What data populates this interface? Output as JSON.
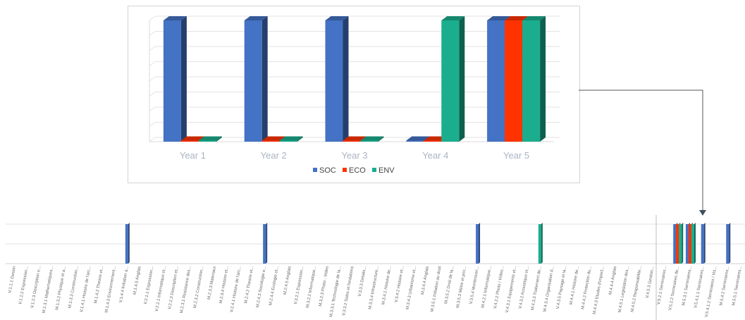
{
  "chart_data": [
    {
      "type": "bar",
      "categories": [
        "Year 1",
        "Year 2",
        "Year 3",
        "Year 4",
        "Year 5"
      ],
      "series": [
        {
          "name": "SOC",
          "values": [
            1,
            1,
            1,
            0,
            1
          ]
        },
        {
          "name": "ECO",
          "values": [
            0,
            0,
            0,
            0,
            1
          ]
        },
        {
          "name": "ENV",
          "values": [
            0,
            0,
            0,
            1,
            1
          ]
        }
      ],
      "ylim": [
        0,
        1
      ],
      "grid": true,
      "legend_placement": "bottom",
      "colors": {
        "SOC": "#4472c4",
        "ECO": "#ff3300",
        "ENV": "#1aae8e"
      }
    },
    {
      "type": "bar",
      "categories": [
        "V.1.1.1 Dessin",
        "V.1.2.2 Expression...",
        "V.1.2.3 Description e...",
        "M.1.3.1 Mathematiques...",
        "M.1.3.2 Physique et a...",
        "M.1.3.3 Construction...",
        "V.1.4.1 Histoire de l'arc...",
        "M.1.4.2 Theorie et...",
        "M.1.4.3 Environnement...",
        "V.1.4.4 Initiation a...",
        "M.1.4.5 Anglais",
        "V.2.1.1 Expression...",
        "V.2.2.1 Informatique et...",
        "V.2.2.3 Description et...",
        "M.2.3.1 Resistance des...",
        "M.2.3.2 Construction...",
        "M.2.3.3 Materiaux",
        "M.2.3.4 Histoire et...",
        "V.2.4.1 Histoire de l'arc...",
        "M.2.4.2 Theorie et...",
        "M.2.4.3 Sociologie e...",
        "M.2.4.4 Ecologie et...",
        "M.2.4.5 Anglais",
        "V.3.2.1 Expression...",
        "M.3.2.2 Informatique...",
        "M.3.2.3 Photo - Video",
        "M.3.3.1 Technologie de la...",
        "V.3.3.2 Soles et fondations",
        "V.3.3.3 Details...",
        "M.3.3.4 Infrastructure...",
        "M.3.4.1 Histoire de...",
        "V.3.4.2 Histoire et...",
        "M.3.4.3 Urbanisme et...",
        "M.3.4.4 Anglais",
        "M.3.5.1 Initiation au droit",
        "M.3.5.2 Droit de la...",
        "M.3.5.3 Metre et prix...",
        "V.3.5.4 Montessori...",
        "M.4.2.1 Informatique...",
        "V.4.2.2 Photo / Video...",
        "V.4.3.1 Equipements et...",
        "V.4.3.2 Acoustique et...",
        "M.4.3.3 Traitement de...",
        "M.4.3.4 Organisation d...",
        "V.4.3.5 Paysage et la...",
        "M.4.4.1 Histoire de...",
        "M.4.4.2 Protection du...",
        "M.4.4.3 Etudes d'impact...",
        "M.4.4.4 Anglais",
        "M.4.5.1 Legislation des...",
        "M.4.5.2 Responsabilite...",
        "V.4.5.3 Gestion...",
        "V.5.2.1 Seminaires...",
        "V.5.2.2 Seminaires de...",
        "M.5.3.1 Seminaires...",
        "V.5.4.1.1 Seminaires...",
        "V.5.4.1.2 Seminaires / Vis...",
        "M.5.4.2 Seminaires...",
        "M.5.5.1 Seminaires..."
      ],
      "series": [
        {
          "name": "SOC",
          "values": [
            0,
            0,
            0,
            0,
            0,
            0,
            0,
            0,
            0,
            1,
            0,
            0,
            0,
            0,
            0,
            0,
            0,
            0,
            0,
            0,
            1,
            0,
            0,
            0,
            0,
            0,
            0,
            0,
            0,
            0,
            0,
            0,
            0,
            0,
            0,
            0,
            0,
            1,
            0,
            0,
            0,
            0,
            0,
            0,
            0,
            0,
            0,
            0,
            0,
            0,
            0,
            0,
            0,
            1,
            1,
            1,
            0,
            1,
            0
          ]
        },
        {
          "name": "ECO",
          "values": [
            0,
            0,
            0,
            0,
            0,
            0,
            0,
            0,
            0,
            0,
            0,
            0,
            0,
            0,
            0,
            0,
            0,
            0,
            0,
            0,
            0,
            0,
            0,
            0,
            0,
            0,
            0,
            0,
            0,
            0,
            0,
            0,
            0,
            0,
            0,
            0,
            0,
            0,
            0,
            0,
            0,
            0,
            0,
            0,
            0,
            0,
            0,
            0,
            0,
            0,
            0,
            0,
            0,
            1,
            1,
            0,
            0,
            0,
            0
          ]
        },
        {
          "name": "ENV",
          "values": [
            0,
            0,
            0,
            0,
            0,
            0,
            0,
            0,
            0,
            0,
            0,
            0,
            0,
            0,
            0,
            0,
            0,
            0,
            0,
            0,
            0,
            0,
            0,
            0,
            0,
            0,
            0,
            0,
            0,
            0,
            0,
            0,
            0,
            0,
            0,
            0,
            0,
            0,
            0,
            0,
            0,
            0,
            1,
            0,
            0,
            0,
            0,
            0,
            0,
            0,
            0,
            0,
            0,
            1,
            1,
            0,
            0,
            0,
            0
          ]
        }
      ],
      "ylim": [
        0,
        1
      ],
      "grid": true,
      "colors": {
        "SOC": "#4472c4",
        "ECO": "#ff3300",
        "ENV": "#1aae8e"
      }
    }
  ]
}
